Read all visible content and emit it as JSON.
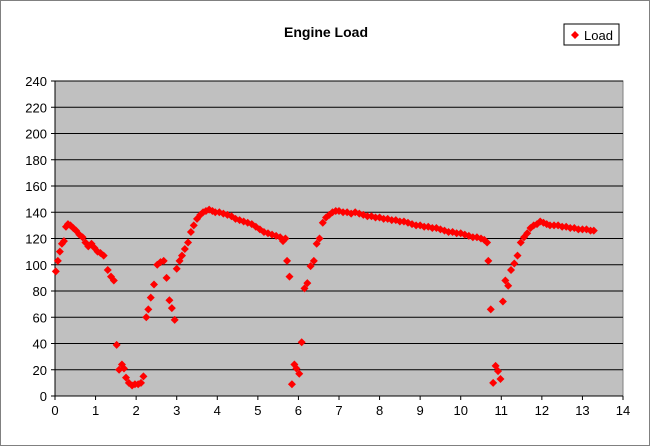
{
  "chart_data": {
    "type": "scatter",
    "title": "Engine Load",
    "xlabel": "",
    "ylabel": "",
    "xlim": [
      0,
      14
    ],
    "ylim": [
      0,
      240
    ],
    "xticks": [
      0,
      1,
      2,
      3,
      4,
      5,
      6,
      7,
      8,
      9,
      10,
      11,
      12,
      13,
      14
    ],
    "yticks": [
      0,
      20,
      40,
      60,
      80,
      100,
      120,
      140,
      160,
      180,
      200,
      220,
      240
    ],
    "grid": "horizontal",
    "plot_background": "#c0c0c0",
    "legend": {
      "position": "top-right",
      "entries": [
        "Load"
      ]
    },
    "series": [
      {
        "name": "Load",
        "color": "#ff0000",
        "marker": "diamond",
        "points": [
          [
            0.02,
            95
          ],
          [
            0.07,
            103
          ],
          [
            0.12,
            110
          ],
          [
            0.17,
            116
          ],
          [
            0.22,
            118
          ],
          [
            0.27,
            129
          ],
          [
            0.32,
            131
          ],
          [
            0.38,
            130
          ],
          [
            0.45,
            128
          ],
          [
            0.52,
            126
          ],
          [
            0.6,
            123
          ],
          [
            0.68,
            121
          ],
          [
            0.75,
            117
          ],
          [
            0.82,
            114
          ],
          [
            0.9,
            116
          ],
          [
            0.97,
            113
          ],
          [
            1.05,
            110
          ],
          [
            1.12,
            109
          ],
          [
            1.2,
            107
          ],
          [
            1.3,
            96
          ],
          [
            1.38,
            91
          ],
          [
            1.45,
            88
          ],
          [
            1.52,
            39
          ],
          [
            1.58,
            20
          ],
          [
            1.65,
            24
          ],
          [
            1.7,
            21
          ],
          [
            1.75,
            14
          ],
          [
            1.82,
            10
          ],
          [
            1.9,
            8
          ],
          [
            1.97,
            9
          ],
          [
            2.05,
            9
          ],
          [
            2.12,
            10
          ],
          [
            2.18,
            15
          ],
          [
            2.25,
            60
          ],
          [
            2.3,
            66
          ],
          [
            2.36,
            75
          ],
          [
            2.44,
            85
          ],
          [
            2.52,
            100
          ],
          [
            2.6,
            102
          ],
          [
            2.68,
            103
          ],
          [
            2.75,
            90
          ],
          [
            2.82,
            73
          ],
          [
            2.88,
            67
          ],
          [
            2.95,
            58
          ],
          [
            3.0,
            97
          ],
          [
            3.07,
            103
          ],
          [
            3.13,
            107
          ],
          [
            3.2,
            112
          ],
          [
            3.28,
            117
          ],
          [
            3.35,
            125
          ],
          [
            3.42,
            130
          ],
          [
            3.5,
            135
          ],
          [
            3.58,
            138
          ],
          [
            3.65,
            140
          ],
          [
            3.72,
            141
          ],
          [
            3.8,
            142
          ],
          [
            3.88,
            141
          ],
          [
            3.95,
            140
          ],
          [
            4.05,
            140
          ],
          [
            4.15,
            139
          ],
          [
            4.25,
            138
          ],
          [
            4.35,
            137
          ],
          [
            4.45,
            135
          ],
          [
            4.55,
            134
          ],
          [
            4.65,
            133
          ],
          [
            4.75,
            132
          ],
          [
            4.85,
            131
          ],
          [
            4.95,
            129
          ],
          [
            5.05,
            127
          ],
          [
            5.15,
            125
          ],
          [
            5.25,
            124
          ],
          [
            5.35,
            123
          ],
          [
            5.45,
            122
          ],
          [
            5.55,
            121
          ],
          [
            5.62,
            118
          ],
          [
            5.68,
            120
          ],
          [
            5.72,
            103
          ],
          [
            5.78,
            91
          ],
          [
            5.84,
            9
          ],
          [
            5.9,
            24
          ],
          [
            5.95,
            21
          ],
          [
            6.02,
            17
          ],
          [
            6.08,
            41
          ],
          [
            6.15,
            82
          ],
          [
            6.22,
            86
          ],
          [
            6.3,
            99
          ],
          [
            6.38,
            103
          ],
          [
            6.45,
            116
          ],
          [
            6.52,
            120
          ],
          [
            6.6,
            132
          ],
          [
            6.68,
            136
          ],
          [
            6.76,
            138
          ],
          [
            6.84,
            140
          ],
          [
            6.92,
            141
          ],
          [
            7.0,
            141
          ],
          [
            7.1,
            140
          ],
          [
            7.2,
            140
          ],
          [
            7.3,
            139
          ],
          [
            7.4,
            140
          ],
          [
            7.5,
            139
          ],
          [
            7.6,
            138
          ],
          [
            7.7,
            137
          ],
          [
            7.8,
            137
          ],
          [
            7.9,
            136
          ],
          [
            8.0,
            136
          ],
          [
            8.1,
            135
          ],
          [
            8.2,
            135
          ],
          [
            8.3,
            134
          ],
          [
            8.4,
            134
          ],
          [
            8.5,
            133
          ],
          [
            8.6,
            133
          ],
          [
            8.7,
            132
          ],
          [
            8.8,
            131
          ],
          [
            8.9,
            130
          ],
          [
            9.0,
            130
          ],
          [
            9.1,
            129
          ],
          [
            9.2,
            129
          ],
          [
            9.3,
            128
          ],
          [
            9.4,
            128
          ],
          [
            9.5,
            127
          ],
          [
            9.6,
            126
          ],
          [
            9.7,
            125
          ],
          [
            9.8,
            125
          ],
          [
            9.9,
            124
          ],
          [
            10.0,
            124
          ],
          [
            10.1,
            123
          ],
          [
            10.2,
            122
          ],
          [
            10.3,
            121
          ],
          [
            10.4,
            121
          ],
          [
            10.5,
            120
          ],
          [
            10.58,
            119
          ],
          [
            10.65,
            117
          ],
          [
            10.68,
            103
          ],
          [
            10.74,
            66
          ],
          [
            10.8,
            10
          ],
          [
            10.86,
            23
          ],
          [
            10.92,
            19
          ],
          [
            10.98,
            13
          ],
          [
            11.04,
            72
          ],
          [
            11.1,
            88
          ],
          [
            11.17,
            84
          ],
          [
            11.24,
            96
          ],
          [
            11.32,
            101
          ],
          [
            11.4,
            107
          ],
          [
            11.48,
            117
          ],
          [
            11.56,
            121
          ],
          [
            11.64,
            124
          ],
          [
            11.72,
            128
          ],
          [
            11.8,
            130
          ],
          [
            11.88,
            131
          ],
          [
            11.96,
            133
          ],
          [
            12.04,
            132
          ],
          [
            12.12,
            131
          ],
          [
            12.2,
            130
          ],
          [
            12.3,
            130
          ],
          [
            12.4,
            130
          ],
          [
            12.5,
            129
          ],
          [
            12.6,
            129
          ],
          [
            12.7,
            128
          ],
          [
            12.8,
            128
          ],
          [
            12.9,
            127
          ],
          [
            13.0,
            127
          ],
          [
            13.1,
            127
          ],
          [
            13.2,
            126
          ],
          [
            13.28,
            126
          ]
        ]
      }
    ]
  }
}
